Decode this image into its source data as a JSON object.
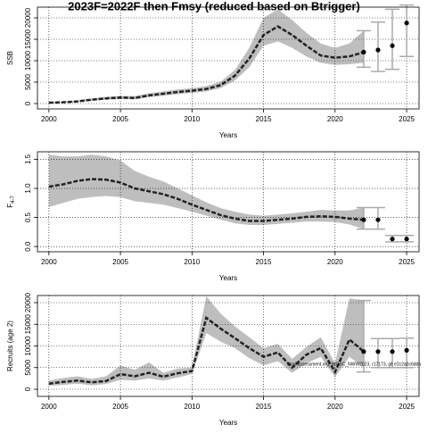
{
  "title": "2023F=2022F then Fmsy (reduced based on Btrigger)",
  "chart_data": [
    {
      "type": "band-line",
      "ylabel": "SSB",
      "xlabel": "Years",
      "xlim": [
        1999.2,
        2025.87
      ],
      "ylim": [
        -1250,
        22500
      ],
      "xticks": [
        2000,
        2005,
        2010,
        2015,
        2020,
        2025
      ],
      "yticks": [
        0,
        5000,
        10000,
        15000,
        20000
      ],
      "grid": true,
      "band_color": "#bebebe",
      "line_color": "#222222",
      "forecast_color": "#aaaaaa",
      "x": [
        2000,
        2001,
        2002,
        2003,
        2004,
        2005,
        2006,
        2007,
        2008,
        2009,
        2010,
        2011,
        2012,
        2013,
        2014,
        2015,
        2016,
        2017,
        2018,
        2019,
        2020,
        2021,
        2022
      ],
      "values": [
        200,
        300,
        500,
        900,
        1200,
        1400,
        1300,
        1900,
        2300,
        2700,
        3000,
        3400,
        4300,
        6500,
        10500,
        16000,
        18000,
        16000,
        13500,
        11200,
        10700,
        11000,
        12000
      ],
      "lower": [
        100,
        200,
        350,
        650,
        900,
        1050,
        1000,
        1500,
        1850,
        2200,
        2500,
        2850,
        3600,
        5400,
        8500,
        13500,
        14500,
        13000,
        11000,
        9500,
        9000,
        9200,
        9500
      ],
      "upper": [
        350,
        450,
        700,
        1200,
        1600,
        1800,
        1750,
        2400,
        2850,
        3300,
        3600,
        4100,
        5100,
        7800,
        13000,
        20000,
        22000,
        19500,
        16500,
        14000,
        13000,
        14000,
        17000
      ],
      "forecast": {
        "x": [
          2022,
          2023,
          2024,
          2025
        ],
        "values": [
          12000,
          12500,
          13500,
          18800
        ],
        "lower": [
          8500,
          7500,
          8000,
          11000
        ],
        "upper": [
          17000,
          19000,
          22000,
          23000
        ]
      }
    },
    {
      "type": "band-line",
      "ylabel": "F",
      "ylabel_sub": "4-7",
      "xlabel": "Years",
      "xlim": [
        1999.2,
        2025.87
      ],
      "ylim": [
        -0.09,
        1.63
      ],
      "xticks": [
        2000,
        2005,
        2010,
        2015,
        2020,
        2025
      ],
      "yticks": [
        {
          "value": 0,
          "label": "0.0"
        },
        0.5,
        {
          "value": 1,
          "label": "1.0"
        },
        1.5
      ],
      "grid": true,
      "band_color": "#bebebe",
      "line_color": "#222222",
      "forecast_color": "#aaaaaa",
      "x": [
        2000,
        2001,
        2002,
        2003,
        2004,
        2005,
        2006,
        2007,
        2008,
        2009,
        2010,
        2011,
        2012,
        2013,
        2014,
        2015,
        2016,
        2017,
        2018,
        2019,
        2020,
        2021,
        2022
      ],
      "values": [
        1.03,
        1.07,
        1.13,
        1.16,
        1.15,
        1.1,
        1.0,
        0.95,
        0.9,
        0.82,
        0.72,
        0.63,
        0.54,
        0.48,
        0.44,
        0.44,
        0.46,
        0.48,
        0.51,
        0.52,
        0.51,
        0.48,
        0.46
      ],
      "lower": [
        0.68,
        0.75,
        0.82,
        0.85,
        0.87,
        0.85,
        0.78,
        0.75,
        0.72,
        0.66,
        0.6,
        0.53,
        0.46,
        0.4,
        0.37,
        0.37,
        0.39,
        0.41,
        0.43,
        0.43,
        0.42,
        0.38,
        0.3
      ],
      "upper": [
        1.58,
        1.55,
        1.55,
        1.58,
        1.55,
        1.48,
        1.3,
        1.2,
        1.12,
        1.0,
        0.88,
        0.76,
        0.66,
        0.6,
        0.55,
        0.53,
        0.55,
        0.57,
        0.6,
        0.63,
        0.62,
        0.62,
        0.67
      ],
      "forecast": {
        "x": [
          2022,
          2023,
          2024,
          2025
        ],
        "values": [
          0.46,
          0.46,
          0.13,
          0.13
        ],
        "lower": [
          0.3,
          0.3,
          0.08,
          0.08
        ],
        "upper": [
          0.67,
          0.67,
          0.19,
          0.19
        ]
      }
    },
    {
      "type": "band-line",
      "ylabel": "Recruits (age 2)",
      "xlabel": "Years",
      "xlim": [
        1999.2,
        2025.87
      ],
      "ylim": [
        -1650,
        21650
      ],
      "xticks": [
        2000,
        2005,
        2010,
        2015,
        2020,
        2025
      ],
      "yticks": [
        0,
        5000,
        10000,
        15000,
        20000
      ],
      "grid": true,
      "band_color": "#bebebe",
      "line_color": "#222222",
      "forecast_color": "#aaaaaa",
      "annotation": "stockassessment.org, WGSC_NWW2023, r17173, git e2c2a0c6dda",
      "x": [
        2000,
        2001,
        2002,
        2003,
        2004,
        2005,
        2006,
        2007,
        2008,
        2009,
        2010,
        2011,
        2012,
        2013,
        2014,
        2015,
        2016,
        2017,
        2018,
        2019,
        2020,
        2021,
        2022
      ],
      "values": [
        1300,
        1700,
        2000,
        1600,
        1900,
        3500,
        3000,
        3800,
        2900,
        3700,
        4200,
        16500,
        14000,
        11800,
        9500,
        7500,
        8500,
        5000,
        8000,
        9500,
        4000,
        11500,
        8700
      ],
      "lower": [
        800,
        1000,
        1300,
        900,
        1200,
        2200,
        2000,
        2500,
        2000,
        2700,
        3500,
        13000,
        11000,
        9500,
        7200,
        5500,
        6500,
        3800,
        6000,
        7500,
        2800,
        7500,
        5000
      ],
      "upper": [
        2000,
        2600,
        3000,
        2400,
        3000,
        5500,
        4500,
        6200,
        3800,
        4800,
        5000,
        21500,
        17500,
        14500,
        12000,
        9500,
        10500,
        7000,
        9800,
        12000,
        6000,
        21000,
        20500
      ],
      "forecast": {
        "x": [
          2022,
          2023,
          2024,
          2025
        ],
        "values": [
          8700,
          8700,
          8700,
          9000
        ],
        "lower": [
          4000,
          5000,
          5000,
          5000
        ],
        "upper": [
          20500,
          11700,
          11700,
          11800
        ]
      }
    }
  ]
}
